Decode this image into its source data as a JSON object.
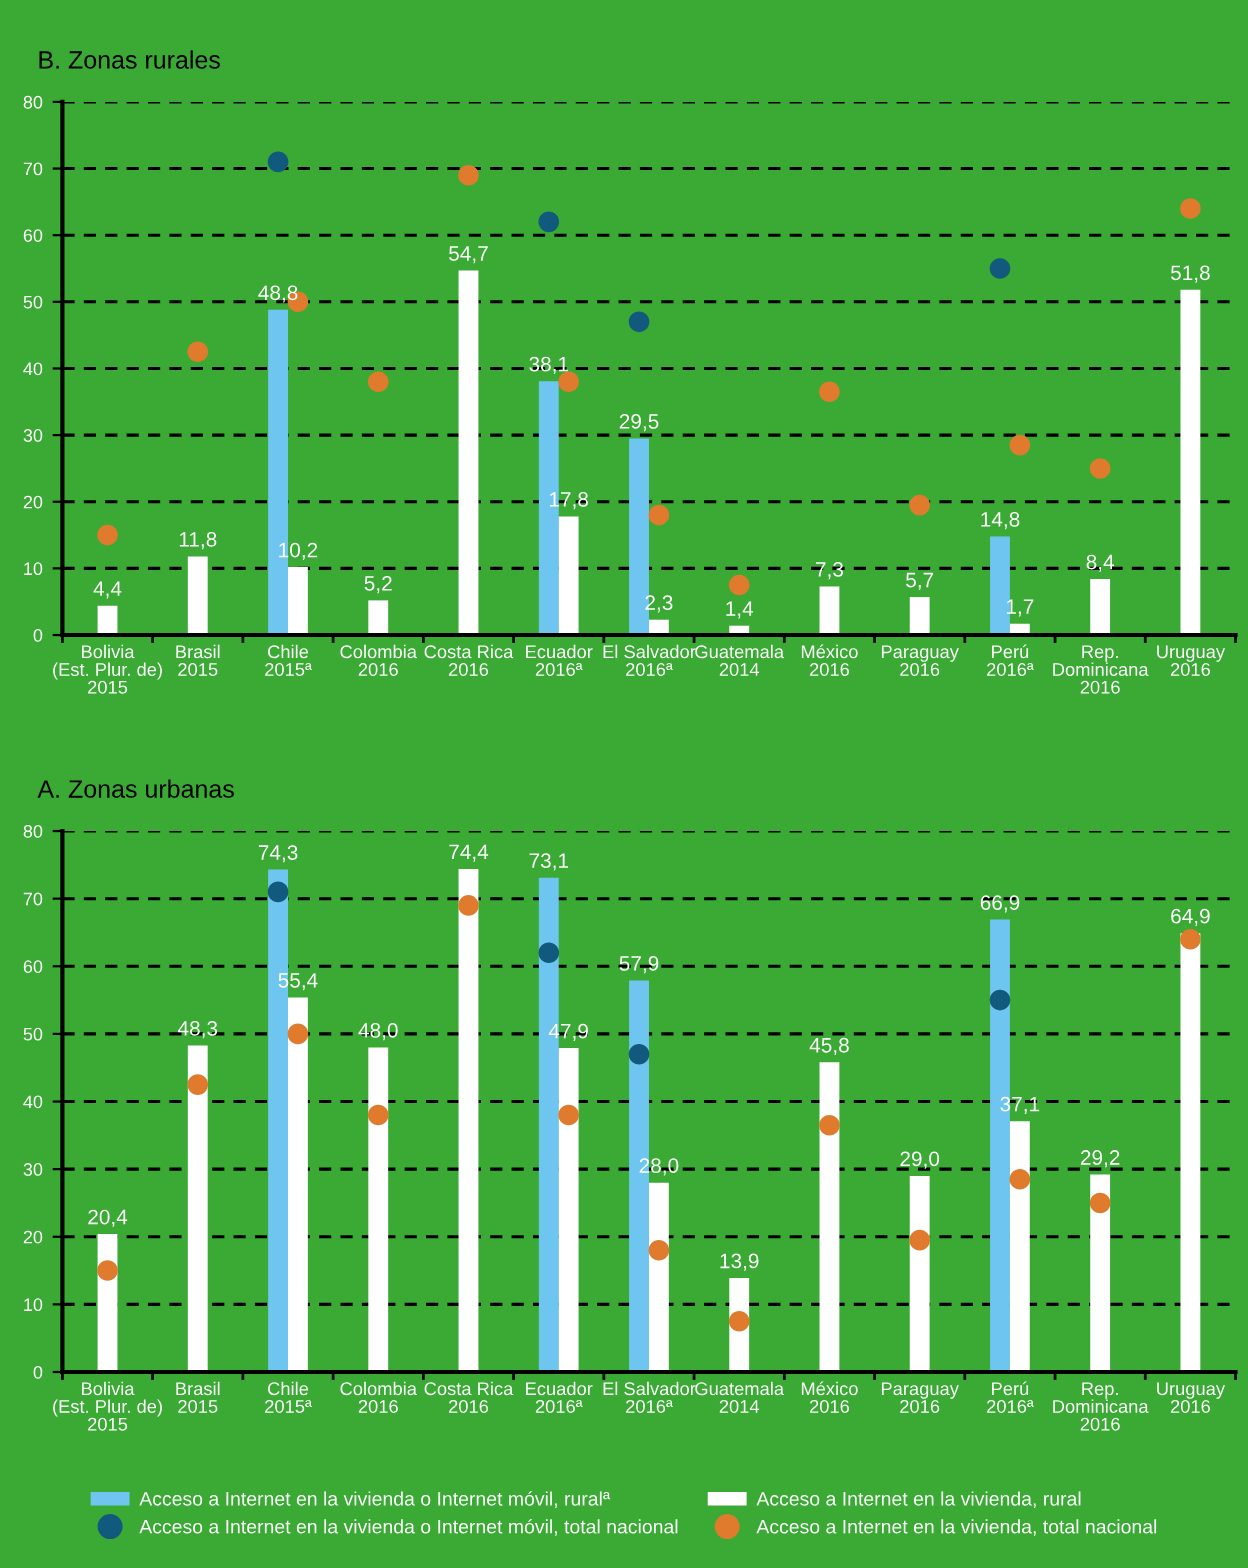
{
  "chart_data": [
    {
      "type": "bar",
      "title": "B. Zonas rurales",
      "categories": [
        "Bolivia\n(Est. Plur. de)\n2015",
        "Brasil\n2015",
        "Chile\n2015ª",
        "Colombia\n2016",
        "Costa Rica\n2016",
        "Ecuador\n2016ª",
        "El Salvador\n2016ª",
        "Guatemala\n2014",
        "México\n2016",
        "Paraguay\n2016",
        "Perú\n2016ª",
        "Rep.\nDominicana\n2016",
        "Uruguay\n2016"
      ],
      "series": [
        {
          "color": "#6ec6f0",
          "values": [
            null,
            null,
            48.8,
            null,
            null,
            38.1,
            29.5,
            null,
            null,
            null,
            14.8,
            null,
            null
          ],
          "value_labels": [
            null,
            null,
            "48,8",
            null,
            null,
            "38,1",
            "29,5",
            null,
            null,
            null,
            "14,8",
            null,
            null
          ]
        },
        {
          "color": "#ffffff",
          "values": [
            4.4,
            11.8,
            10.2,
            5.2,
            54.7,
            17.8,
            2.3,
            1.4,
            7.3,
            5.7,
            1.7,
            8.4,
            51.8
          ],
          "value_labels": [
            "4,4",
            "11,8",
            "10,2",
            "5,2",
            "54,7",
            "17,8",
            "2,3",
            "1,4",
            "7,3",
            "5,7",
            "1,7",
            "8,4",
            "51,8"
          ]
        },
        {
          "type": "scatter",
          "color": "#115a7e",
          "marker": "circle",
          "values": [
            null,
            null,
            71,
            null,
            null,
            62,
            47,
            null,
            null,
            null,
            55,
            null,
            null
          ]
        },
        {
          "type": "scatter",
          "color": "#e07b2e",
          "marker": "circle",
          "values": [
            15,
            42.5,
            50,
            38,
            69,
            38,
            18,
            7.5,
            36.5,
            19.5,
            28.5,
            25,
            64
          ]
        }
      ],
      "ylim": [
        0,
        80
      ],
      "yticks": [
        0,
        10,
        20,
        30,
        40,
        50,
        60,
        70,
        80
      ],
      "grid": "y",
      "legend": false
    },
    {
      "type": "bar",
      "title": "A. Zonas urbanas",
      "categories": [
        "Bolivia\n(Est. Plur. de)\n2015",
        "Brasil\n2015",
        "Chile\n2015ª",
        "Colombia\n2016",
        "Costa Rica\n2016",
        "Ecuador\n2016ª",
        "El Salvador\n2016ª",
        "Guatemala\n2014",
        "México\n2016",
        "Paraguay\n2016",
        "Perú\n2016ª",
        "Rep.\nDominicana\n2016",
        "Uruguay\n2016"
      ],
      "series": [
        {
          "name": "Acceso a Internet en la vivienda o Internet móvil, ruralª",
          "color": "#6ec6f0",
          "values": [
            null,
            null,
            74.3,
            null,
            null,
            73.1,
            57.9,
            null,
            null,
            null,
            66.9,
            null,
            null
          ],
          "value_labels": [
            null,
            null,
            "74,3",
            null,
            null,
            "73,1",
            "57,9",
            null,
            null,
            null,
            "66,9",
            null,
            null
          ]
        },
        {
          "name": "Acceso a Internet en la vivienda, rural",
          "color": "#ffffff",
          "values": [
            20.4,
            48.3,
            55.4,
            48.0,
            74.4,
            47.9,
            28.0,
            13.9,
            45.8,
            29.0,
            37.1,
            29.2,
            64.9
          ],
          "value_labels": [
            "20,4",
            "48,3",
            "55,4",
            "48,0",
            "74,4",
            "47,9",
            "28,0",
            "13,9",
            "45,8",
            "29,0",
            "37,1",
            "29,2",
            "64,9"
          ]
        },
        {
          "type": "scatter",
          "name": "Acceso a Internet en la vivienda o Internet móvil, total nacional",
          "color": "#115a7e",
          "marker": "circle",
          "values": [
            null,
            null,
            71,
            null,
            null,
            62,
            47,
            null,
            null,
            null,
            55,
            null,
            null
          ]
        },
        {
          "type": "scatter",
          "name": "Acceso a Internet en la vivienda, total nacional",
          "color": "#e07b2e",
          "marker": "circle",
          "values": [
            15,
            42.5,
            50,
            38,
            69,
            38,
            18,
            7.5,
            36.5,
            19.5,
            28.5,
            25,
            64
          ]
        }
      ],
      "ylim": [
        0,
        80
      ],
      "yticks": [
        0,
        10,
        20,
        30,
        40,
        50,
        60,
        70,
        80
      ],
      "grid": "y",
      "legend": "bottom"
    }
  ]
}
